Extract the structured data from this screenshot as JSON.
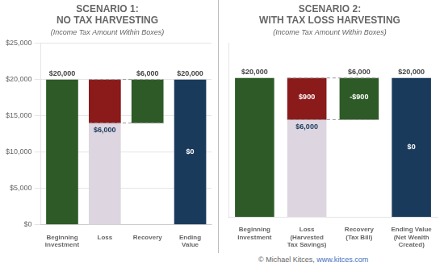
{
  "chart_data": [
    {
      "type": "bar",
      "title": [
        "SCENARIO 1:",
        "NO TAX HARVESTING"
      ],
      "subtitle": "(Income Tax Amount Within Boxes)",
      "categories": [
        "Beginning\nInvestment",
        "Loss",
        "Recovery",
        "Ending\nValue"
      ],
      "values": [
        20000,
        6000,
        6000,
        20000
      ],
      "bottoms": [
        0,
        14000,
        14000,
        0
      ],
      "colors": [
        "#2d5a27",
        "#8b1a1a",
        "#2d5a27",
        "#1a3a5c"
      ],
      "background_values": [
        null,
        20000,
        null,
        null
      ],
      "background_color": "#ddd5e0",
      "data_labels": true,
      "value_labels": [
        "$20,000",
        null,
        "$6,000",
        "$20,000"
      ],
      "annotations": [
        {
          "text": "$6,000",
          "category": "Loss",
          "y": 13000,
          "color": "#1a3a5c"
        },
        {
          "text": "$0",
          "category": "Ending\nValue",
          "y": 10000,
          "color": "#ffffff"
        }
      ],
      "lines": [
        {
          "y": 20000,
          "from": "Loss",
          "to": "Recovery",
          "color": "#999999",
          "line_style": "dashed"
        },
        {
          "y": 14000,
          "from": "Loss",
          "to": "Recovery",
          "color": "#999999",
          "line_style": "dashed"
        }
      ],
      "ylim": [
        0,
        25000
      ],
      "yticks": [
        {
          "value": 0,
          "label": "$0"
        },
        {
          "value": 5000,
          "label": "$5,000"
        },
        {
          "value": 10000,
          "label": "$10,000"
        },
        {
          "value": 15000,
          "label": "$15,000"
        },
        {
          "value": 20000,
          "label": "$20,000"
        },
        {
          "value": 25000,
          "label": "$25,000"
        }
      ],
      "grid": true
    },
    {
      "type": "bar",
      "title": [
        "SCENARIO 2:",
        "WITH TAX LOSS HARVESTING"
      ],
      "subtitle": "(Income Tax Amount Within Boxes)",
      "categories": [
        "Beginning\nInvestment",
        "Loss\n(Harvested\nTax Savings)",
        "Recovery\n(Tax Bill)",
        "Ending Value\n(Net Wealth\nCreated)"
      ],
      "values": [
        20000,
        6000,
        6000,
        20000
      ],
      "bottoms": [
        0,
        14000,
        14000,
        0
      ],
      "colors": [
        "#2d5a27",
        "#8b1a1a",
        "#2d5a27",
        "#1a3a5c"
      ],
      "background_values": [
        null,
        20000,
        null,
        null
      ],
      "background_color": "#ddd5e0",
      "data_labels": true,
      "value_labels": [
        "$20,000",
        null,
        "$6,000",
        "$20,000"
      ],
      "annotations": [
        {
          "text": "$900",
          "category": "Loss\n(Harvested\nTax Savings)",
          "y": 17200,
          "color": "#ffffff"
        },
        {
          "text": "$6,000",
          "category": "Loss\n(Harvested\nTax Savings)",
          "y": 13000,
          "color": "#1a3a5c"
        },
        {
          "text": "-$900",
          "category": "Recovery\n(Tax Bill)",
          "y": 17200,
          "color": "#ffffff"
        },
        {
          "text": "$0",
          "category": "Ending Value\n(Net Wealth\nCreated)",
          "y": 10000,
          "color": "#ffffff"
        }
      ],
      "lines": [
        {
          "y": 20000,
          "from": "Loss\n(Harvested\nTax Savings)",
          "to": "Recovery\n(Tax Bill)",
          "color": "#999999",
          "line_style": "dashed"
        },
        {
          "y": 14000,
          "from": "Loss\n(Harvested\nTax Savings)",
          "to": "Recovery\n(Tax Bill)",
          "color": "#999999",
          "line_style": "dashed"
        }
      ],
      "ylim": [
        0,
        25000
      ],
      "tick_labels": "x",
      "grid": false
    }
  ],
  "footer": {
    "text": "© Michael Kitces, ",
    "link": "www.kitces.com",
    "link_color": "#4472c4"
  }
}
